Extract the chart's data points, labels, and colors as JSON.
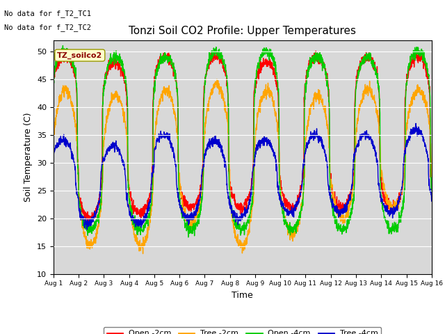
{
  "title": "Tonzi Soil CO2 Profile: Upper Temperatures",
  "ylabel": "Soil Temperature (C)",
  "xlabel": "Time",
  "ylim": [
    10,
    52
  ],
  "yticks": [
    10,
    15,
    20,
    25,
    30,
    35,
    40,
    45,
    50
  ],
  "annotation1": "No data for f_T2_TC1",
  "annotation2": "No data for f_T2_TC2",
  "legend_title": "TZ_soilco2",
  "legend_entries": [
    "Open -2cm",
    "Tree -2cm",
    "Open -4cm",
    "Tree -4cm"
  ],
  "line_colors": [
    "#ff0000",
    "#ffa500",
    "#00cc00",
    "#0000cc"
  ],
  "background_color": "#d8d8d8",
  "fig_background": "#ffffff",
  "xticklabels": [
    "Aug 1",
    "Aug 2",
    "Aug 3",
    "Aug 4",
    "Aug 5",
    "Aug 6",
    "Aug 7",
    "Aug 8",
    "Aug 9",
    "Aug 10",
    "Aug 11",
    "Aug 12",
    "Aug 13",
    "Aug 14",
    "Aug 15",
    "Aug 16"
  ],
  "n_days": 15,
  "pts_per_day": 144
}
